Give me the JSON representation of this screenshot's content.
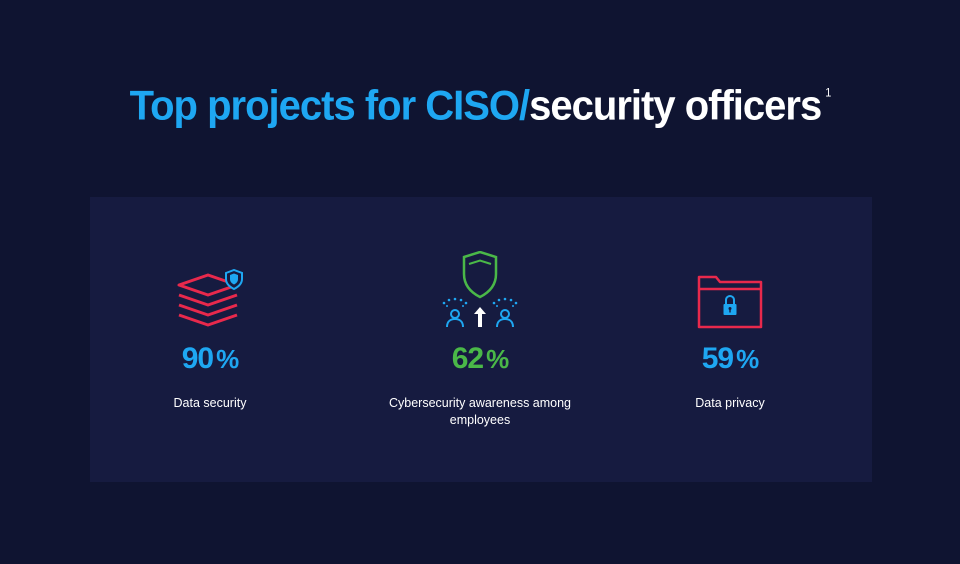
{
  "title": {
    "part1": "Top projects for CISO/",
    "part2": "security officers",
    "footnote": "1"
  },
  "stats": [
    {
      "value": "90",
      "unit": "%",
      "label": "Data security",
      "icon": "stacked-layers-shield-icon",
      "color": "#1ea7f2"
    },
    {
      "value": "62",
      "unit": "%",
      "label": "Cybersecurity awareness among employees",
      "icon": "shield-people-arrow-icon",
      "color": "#4ab848"
    },
    {
      "value": "59",
      "unit": "%",
      "label": "Data privacy",
      "icon": "locked-folder-icon",
      "color": "#1ea7f2"
    }
  ],
  "colors": {
    "background": "#0f1431",
    "panel": "#161b40",
    "accent_blue": "#1ea7f2",
    "accent_green": "#4ab848",
    "accent_red": "#e8294c"
  }
}
